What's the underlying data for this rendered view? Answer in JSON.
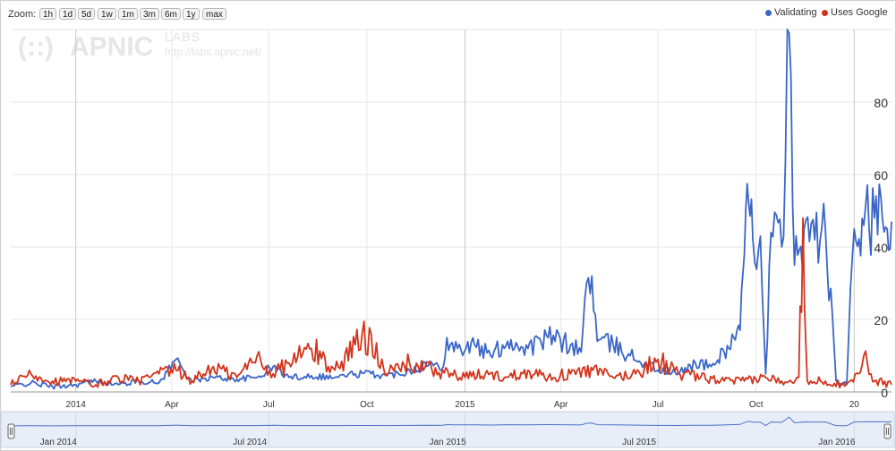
{
  "zoom": {
    "label": "Zoom:",
    "buttons": [
      "1h",
      "1d",
      "5d",
      "1w",
      "1m",
      "3m",
      "6m",
      "1y",
      "max"
    ]
  },
  "legend": [
    {
      "label": "Validating",
      "color": "#3a66c8"
    },
    {
      "label": "Uses Google",
      "color": "#d2341b"
    }
  ],
  "watermark": {
    "brand": "APNIC",
    "sub": "LABS",
    "url": "http://labs.apnic.net/"
  },
  "chart_data": {
    "type": "line",
    "title": "",
    "xlabel": "",
    "ylabel": "",
    "x_tick_labels": [
      "2014",
      "Apr",
      "Jul",
      "Oct",
      "2015",
      "Apr",
      "Jul",
      "Oct",
      "20"
    ],
    "y_tick_labels": [
      "0",
      "20",
      "40",
      "60",
      "80"
    ],
    "ylim": [
      0,
      100
    ],
    "xlim": [
      "2013-11-01",
      "2016-02-05"
    ],
    "grid": true,
    "legend_position": "top-right",
    "series": [
      {
        "name": "Validating",
        "color": "#3a66c8",
        "points": [
          [
            "2013-11-01",
            1.5
          ],
          [
            "2013-11-20",
            2.5
          ],
          [
            "2013-12-10",
            1.5
          ],
          [
            "2014-01-01",
            2
          ],
          [
            "2014-01-20",
            3
          ],
          [
            "2014-02-10",
            2
          ],
          [
            "2014-03-01",
            3
          ],
          [
            "2014-03-20",
            2.5
          ],
          [
            "2014-04-05",
            9
          ],
          [
            "2014-04-20",
            3
          ],
          [
            "2014-05-10",
            4
          ],
          [
            "2014-06-01",
            3.5
          ],
          [
            "2014-06-20",
            4
          ],
          [
            "2014-07-05",
            7
          ],
          [
            "2014-07-20",
            4
          ],
          [
            "2014-08-10",
            4.5
          ],
          [
            "2014-09-01",
            4
          ],
          [
            "2014-09-20",
            5
          ],
          [
            "2014-10-05",
            5
          ],
          [
            "2014-10-20",
            4.5
          ],
          [
            "2014-11-10",
            6
          ],
          [
            "2014-12-01",
            8
          ],
          [
            "2014-12-10",
            6
          ],
          [
            "2014-12-15",
            15
          ],
          [
            "2014-12-25",
            12
          ],
          [
            "2015-01-10",
            13
          ],
          [
            "2015-01-25",
            10
          ],
          [
            "2015-02-10",
            14
          ],
          [
            "2015-03-01",
            12
          ],
          [
            "2015-03-20",
            15
          ],
          [
            "2015-04-10",
            13
          ],
          [
            "2015-04-20",
            11
          ],
          [
            "2015-04-25",
            30
          ],
          [
            "2015-04-30",
            32
          ],
          [
            "2015-05-05",
            14
          ],
          [
            "2015-05-20",
            13
          ],
          [
            "2015-06-05",
            10
          ],
          [
            "2015-06-20",
            8
          ],
          [
            "2015-07-01",
            6
          ],
          [
            "2015-07-20",
            5
          ],
          [
            "2015-08-05",
            8
          ],
          [
            "2015-08-20",
            7
          ],
          [
            "2015-09-01",
            11
          ],
          [
            "2015-09-10",
            15
          ],
          [
            "2015-09-16",
            17
          ],
          [
            "2015-09-20",
            38
          ],
          [
            "2015-09-24",
            52
          ],
          [
            "2015-09-28",
            42
          ],
          [
            "2015-10-05",
            43
          ],
          [
            "2015-10-10",
            5
          ],
          [
            "2015-10-15",
            44
          ],
          [
            "2015-10-25",
            40
          ],
          [
            "2015-11-01",
            99
          ],
          [
            "2015-11-06",
            35
          ],
          [
            "2015-11-15",
            45
          ],
          [
            "2015-11-25",
            42
          ],
          [
            "2015-12-05",
            45
          ],
          [
            "2015-12-15",
            3
          ],
          [
            "2015-12-25",
            2
          ],
          [
            "2016-01-01",
            45
          ],
          [
            "2016-01-10",
            46
          ],
          [
            "2016-01-20",
            48
          ],
          [
            "2016-02-01",
            45
          ],
          [
            "2016-02-05",
            47
          ]
        ]
      },
      {
        "name": "Uses Google",
        "color": "#d2341b",
        "points": [
          [
            "2013-11-01",
            2
          ],
          [
            "2013-11-20",
            5
          ],
          [
            "2013-12-10",
            3
          ],
          [
            "2014-01-01",
            3
          ],
          [
            "2014-01-20",
            2
          ],
          [
            "2014-02-10",
            4
          ],
          [
            "2014-03-01",
            3
          ],
          [
            "2014-03-20",
            5
          ],
          [
            "2014-04-05",
            6
          ],
          [
            "2014-04-20",
            3
          ],
          [
            "2014-05-10",
            7
          ],
          [
            "2014-06-01",
            4
          ],
          [
            "2014-06-20",
            10
          ],
          [
            "2014-07-05",
            5
          ],
          [
            "2014-07-20",
            8
          ],
          [
            "2014-08-10",
            12
          ],
          [
            "2014-09-01",
            6
          ],
          [
            "2014-09-20",
            13
          ],
          [
            "2014-10-05",
            16
          ],
          [
            "2014-10-20",
            5
          ],
          [
            "2014-11-10",
            8
          ],
          [
            "2014-12-01",
            6
          ],
          [
            "2015-01-01",
            4
          ],
          [
            "2015-01-20",
            5
          ],
          [
            "2015-02-10",
            4
          ],
          [
            "2015-03-01",
            6
          ],
          [
            "2015-03-20",
            4
          ],
          [
            "2015-04-10",
            5
          ],
          [
            "2015-05-01",
            6
          ],
          [
            "2015-05-20",
            4
          ],
          [
            "2015-06-10",
            5
          ],
          [
            "2015-07-01",
            9
          ],
          [
            "2015-07-20",
            5
          ],
          [
            "2015-08-10",
            4
          ],
          [
            "2015-09-01",
            3
          ],
          [
            "2015-09-20",
            3
          ],
          [
            "2015-10-10",
            4
          ],
          [
            "2015-10-25",
            3
          ],
          [
            "2015-11-10",
            4
          ],
          [
            "2015-11-14",
            48
          ],
          [
            "2015-11-18",
            3
          ],
          [
            "2015-12-05",
            3
          ],
          [
            "2015-12-20",
            2
          ],
          [
            "2016-01-05",
            5
          ],
          [
            "2016-01-10",
            10
          ],
          [
            "2016-01-20",
            3
          ],
          [
            "2016-02-05",
            2
          ]
        ]
      }
    ],
    "navigator": {
      "tick_labels": [
        "Jan 2014",
        "Jul 2014",
        "Jan 2015",
        "Jul 2015",
        "Jan 2016"
      ]
    }
  }
}
